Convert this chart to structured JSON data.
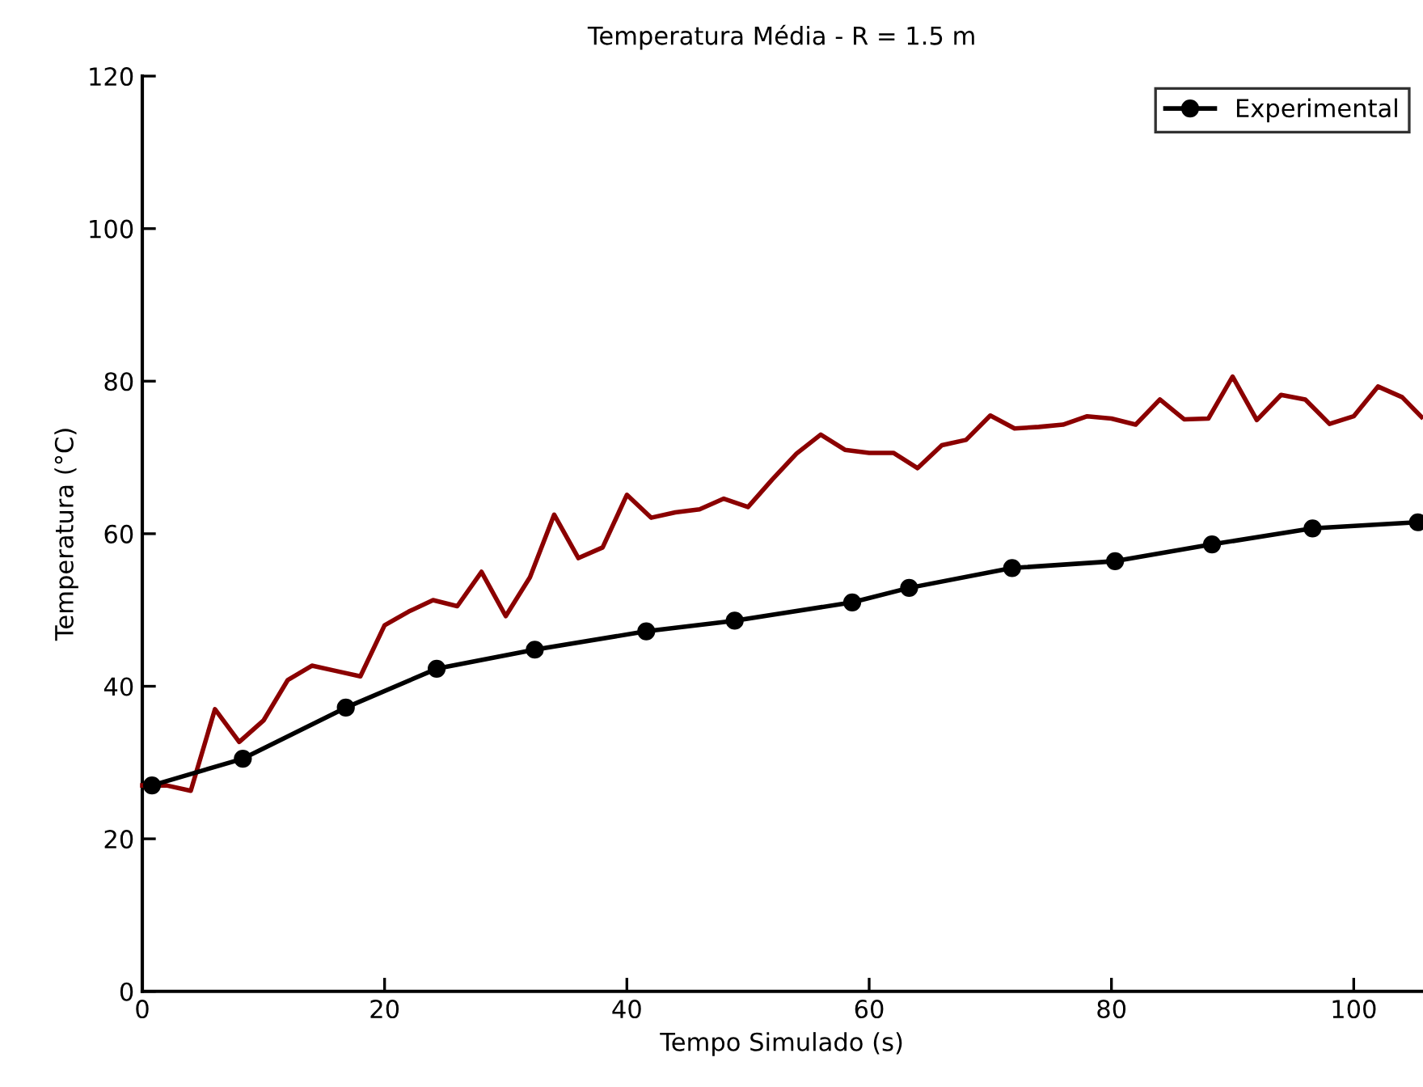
{
  "chart_data": {
    "type": "line",
    "title": "Temperatura Média - R = 1.5 m",
    "xlabel": "Tempo Simulado (s)",
    "ylabel": "Temperatura (°C)",
    "xlim": [
      0,
      105.6
    ],
    "ylim": [
      0,
      120
    ],
    "xticks": [
      0,
      20,
      40,
      60,
      80,
      100
    ],
    "yticks": [
      0,
      20,
      40,
      60,
      80,
      100,
      120
    ],
    "grid": false,
    "legend": "top right",
    "series": [
      {
        "color": "#8b0000",
        "marker": "none",
        "x": [
          0,
          2,
          4,
          6,
          8,
          10,
          12,
          14,
          16,
          18,
          20,
          22,
          24,
          26,
          28,
          30,
          32,
          34,
          36,
          38,
          40,
          42,
          44,
          46,
          48,
          50,
          52,
          54,
          56,
          58,
          60,
          62,
          64,
          66,
          68,
          70,
          72,
          74,
          76,
          78,
          80,
          82,
          84,
          86,
          88,
          90,
          92,
          94,
          96,
          98,
          100,
          102,
          104,
          105.6
        ],
        "values": [
          27,
          27,
          26.3,
          37,
          32.7,
          35.5,
          40.8,
          42.7,
          42,
          41.3,
          48,
          49.8,
          51.3,
          50.5,
          55,
          49.2,
          54.3,
          62.5,
          56.8,
          58.2,
          65.1,
          62.1,
          62.8,
          63.2,
          64.6,
          63.5,
          67.1,
          70.5,
          73,
          71,
          70.6,
          70.6,
          68.6,
          71.6,
          72.3,
          75.5,
          73.8,
          74,
          74.3,
          75.4,
          75.1,
          74.3,
          77.6,
          75,
          75.1,
          80.6,
          74.9,
          78.2,
          77.6,
          74.4,
          75.4,
          79.3,
          77.9,
          75.3
        ]
      },
      {
        "name": "Experimental",
        "color": "#000000",
        "marker": "circle",
        "x": [
          0.8,
          8.3,
          16.8,
          24.3,
          32.4,
          41.6,
          48.9,
          58.6,
          63.3,
          71.8,
          80.3,
          88.3,
          96.6,
          105.3
        ],
        "values": [
          27,
          30.5,
          37.2,
          42.3,
          44.8,
          47.2,
          48.6,
          51,
          52.9,
          55.5,
          56.4,
          58.6,
          60.7,
          61.5
        ]
      }
    ]
  }
}
